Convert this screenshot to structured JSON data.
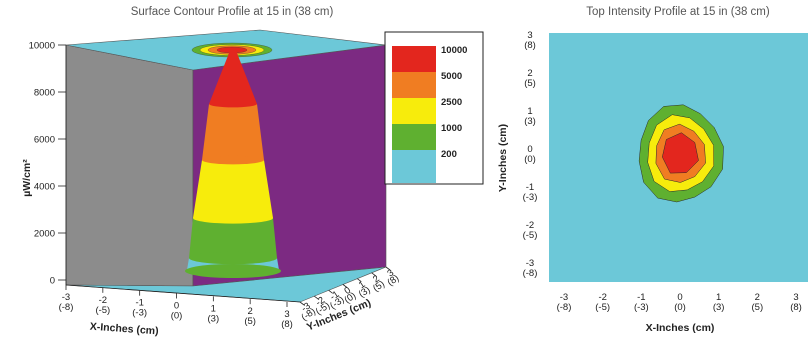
{
  "chart_data": [
    {
      "type": "surface",
      "title": "Surface Contour Profile at 15 in (38 cm)",
      "zlabel": "µW/cm²",
      "xlabel": "X-Inches (cm)",
      "ylabel": "Y-Inches (cm)",
      "zlim": [
        0,
        10000
      ],
      "z_ticks": [
        "0",
        "2000",
        "4000",
        "6000",
        "8000",
        "10000"
      ],
      "x_ticks": [
        {
          "in": "-3",
          "cm": "(-8)"
        },
        {
          "in": "-2",
          "cm": "(-5)"
        },
        {
          "in": "-1",
          "cm": "(-3)"
        },
        {
          "in": "0",
          "cm": "(0)"
        },
        {
          "in": "1",
          "cm": "(3)"
        },
        {
          "in": "2",
          "cm": "(5)"
        },
        {
          "in": "3",
          "cm": "(8)"
        }
      ],
      "y_ticks": [
        {
          "in": "-3",
          "cm": "(-8)"
        },
        {
          "in": "-2",
          "cm": "(-5)"
        },
        {
          "in": "-1",
          "cm": "(-3)"
        },
        {
          "in": "0",
          "cm": "(0)"
        },
        {
          "in": "1",
          "cm": "(3)"
        },
        {
          "in": "2",
          "cm": "(5)"
        },
        {
          "in": "3",
          "cm": "(8)"
        }
      ],
      "legend": [
        {
          "label": "10000",
          "color": "#e3261e"
        },
        {
          "label": "5000",
          "color": "#f07d22"
        },
        {
          "label": "2500",
          "color": "#f7ec0c"
        },
        {
          "label": "1000",
          "color": "#5fb030"
        },
        {
          "label": "200",
          "color": "#6cc8d8"
        }
      ],
      "legend_position": "right",
      "peak_value": 10000
    },
    {
      "type": "contour",
      "title": "Top Intensity Profile at 15 in (38 cm)",
      "xlabel": "X-Inches (cm)",
      "ylabel": "Y-Inches (cm)",
      "xlim": [
        -3,
        3
      ],
      "ylim": [
        -3,
        3
      ],
      "x_ticks": [
        {
          "in": "-3",
          "cm": "(-8)"
        },
        {
          "in": "-2",
          "cm": "(-5)"
        },
        {
          "in": "-1",
          "cm": "(-3)"
        },
        {
          "in": "0",
          "cm": "(0)"
        },
        {
          "in": "1",
          "cm": "(3)"
        },
        {
          "in": "2",
          "cm": "(5)"
        },
        {
          "in": "3",
          "cm": "(8)"
        }
      ],
      "y_ticks": [
        {
          "in": "3",
          "cm": "(8)"
        },
        {
          "in": "2",
          "cm": "(5)"
        },
        {
          "in": "1",
          "cm": "(3)"
        },
        {
          "in": "0",
          "cm": "(0)"
        },
        {
          "in": "-1",
          "cm": "(-3)"
        },
        {
          "in": "-2",
          "cm": "(-5)"
        },
        {
          "in": "-3",
          "cm": "(-8)"
        }
      ],
      "center": [
        0,
        0
      ],
      "contours": [
        {
          "level": 1000,
          "radius_in": 1.2,
          "color": "#5fb030"
        },
        {
          "level": 2500,
          "radius_in": 0.95,
          "color": "#f7ec0c"
        },
        {
          "level": 5000,
          "radius_in": 0.72,
          "color": "#f07d22"
        },
        {
          "level": 10000,
          "radius_in": 0.52,
          "color": "#e3261e"
        }
      ],
      "background_color": "#6cc8d8"
    }
  ]
}
